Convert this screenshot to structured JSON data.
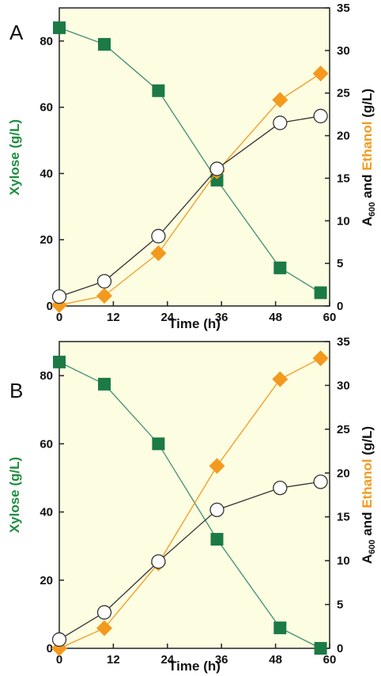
{
  "figure": {
    "colors": {
      "plot_background": "#fdfde1",
      "xylose": "#1b7a45",
      "ethanol": "#f39a1e",
      "a600": "#333333",
      "ylabel_left": "#1e8e3e",
      "ylabel_right_ethanol": "#f39a1e"
    },
    "left_axis_label": "Xylose (g/L)",
    "right_axis_label": {
      "a_main": "A",
      "a_sub": "600",
      "middle": " and ",
      "ethanol": "Ethanol",
      "end": " (g/L)"
    },
    "x_axis_label": "Time (h)"
  },
  "chart_data": [
    {
      "panel": "A",
      "type": "line",
      "xlabel": "Time (h)",
      "ylabel": "Xylose (g/L)",
      "y2label": "A600 and Ethanol (g/L)",
      "xlim": [
        0,
        60
      ],
      "xticks": [
        0,
        12,
        24,
        36,
        48,
        60
      ],
      "ylim": [
        0,
        90
      ],
      "yticks": [
        0,
        20,
        40,
        60,
        80
      ],
      "y2lim": [
        0,
        35
      ],
      "y2ticks": [
        0,
        5,
        10,
        15,
        20,
        25,
        30,
        35
      ],
      "grid": false,
      "series": [
        {
          "axis": "left",
          "marker": "square",
          "x": [
            0,
            10,
            22,
            35,
            49,
            58
          ],
          "values": [
            84,
            79,
            65,
            38,
            11.5,
            4
          ]
        },
        {
          "axis": "right",
          "marker": "diamond",
          "x": [
            0,
            10,
            22,
            35,
            49,
            58
          ],
          "values": [
            0.1,
            1.2,
            6.2,
            15.8,
            24.2,
            27.3
          ]
        },
        {
          "axis": "right",
          "marker": "circle",
          "x": [
            0,
            10,
            22,
            35,
            49,
            58
          ],
          "values": [
            1.1,
            2.9,
            8.2,
            16.1,
            21.5,
            22.3
          ]
        }
      ]
    },
    {
      "panel": "B",
      "type": "line",
      "xlabel": "Time (h)",
      "ylabel": "Xylose (g/L)",
      "y2label": "A600 and Ethanol (g/L)",
      "xlim": [
        0,
        60
      ],
      "xticks": [
        0,
        12,
        24,
        36,
        48,
        60
      ],
      "ylim": [
        0,
        90
      ],
      "yticks": [
        0,
        20,
        40,
        60,
        80
      ],
      "y2lim": [
        0,
        35
      ],
      "y2ticks": [
        0,
        5,
        10,
        15,
        20,
        25,
        30,
        35
      ],
      "grid": false,
      "series": [
        {
          "axis": "left",
          "marker": "square",
          "x": [
            0,
            10,
            22,
            35,
            49,
            58
          ],
          "values": [
            84,
            77.5,
            60,
            32,
            6,
            0
          ]
        },
        {
          "axis": "right",
          "marker": "diamond",
          "x": [
            0,
            10,
            22,
            35,
            49,
            58
          ],
          "values": [
            0,
            2.3,
            9.7,
            20.8,
            30.7,
            33.1
          ]
        },
        {
          "axis": "right",
          "marker": "circle",
          "x": [
            0,
            10,
            22,
            35,
            49,
            58
          ],
          "values": [
            1.0,
            4.1,
            9.9,
            15.8,
            18.3,
            19.0
          ]
        }
      ]
    }
  ]
}
